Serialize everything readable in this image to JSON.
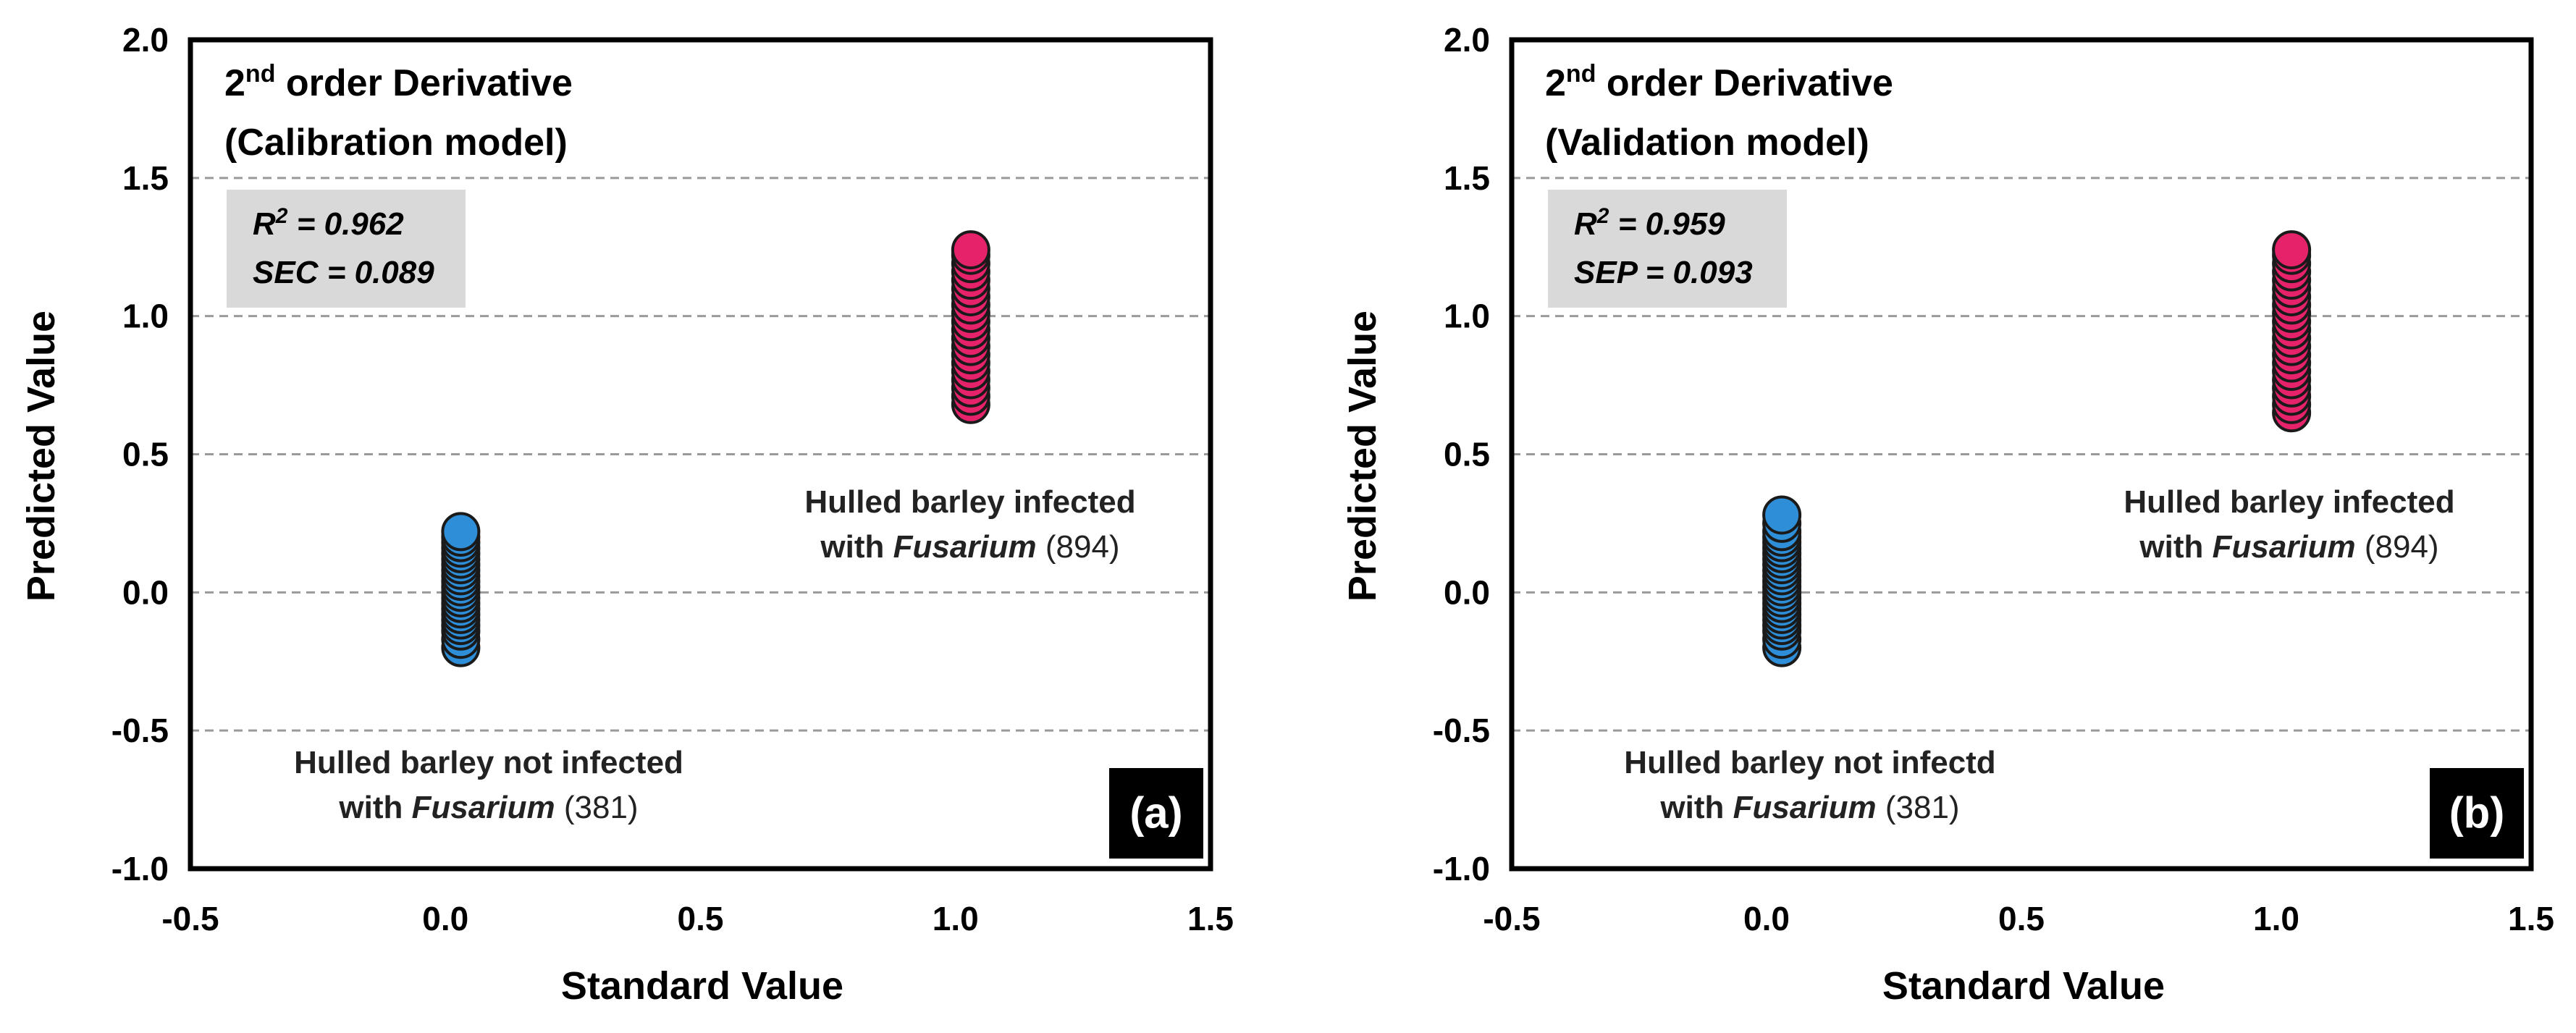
{
  "chart_data": [
    {
      "type": "scatter",
      "panel_tag": "(a)",
      "title_line1_prefix": "2",
      "title_line1_sup": "nd",
      "title_line1_suffix": " order Derivative",
      "title_line2": "(Calibration model)",
      "stats": {
        "r2_label": "R",
        "r2_sup": "2",
        "r2_value": " =  0.962",
        "err_line": "SEC = 0.089"
      },
      "xlabel": "Standard Value",
      "ylabel": "Predicted Value",
      "xlim": [
        -0.5,
        1.5
      ],
      "ylim": [
        -1.0,
        2.0
      ],
      "xticks": [
        "-0.5",
        "0.0",
        "0.5",
        "1.0",
        "1.5"
      ],
      "yticks": [
        "2.0",
        "1.5",
        "1.0",
        "0.5",
        "0.0",
        "-0.5",
        "-1.0"
      ],
      "grid": "horizontal-dashed",
      "series": [
        {
          "x": 0.03,
          "y_min": -0.2,
          "y_max": 0.23,
          "values": [
            -0.2,
            -0.17,
            -0.14,
            -0.12,
            -0.1,
            -0.08,
            -0.06,
            -0.04,
            -0.02,
            0.0,
            0.02,
            0.04,
            0.06,
            0.08,
            0.1,
            0.12,
            0.14,
            0.16,
            0.18,
            0.2,
            0.22
          ],
          "color": "#2e8fd8",
          "label_line1": "Hulled barley not infected",
          "label_line2_prefix": "with ",
          "label_line2_italic": "Fusarium",
          "label_line2_suffix": " (381)"
        },
        {
          "x": 1.03,
          "y_min": 0.68,
          "y_max": 1.24,
          "values": [
            0.68,
            0.71,
            0.74,
            0.77,
            0.8,
            0.83,
            0.86,
            0.89,
            0.92,
            0.95,
            0.98,
            1.01,
            1.04,
            1.07,
            1.1,
            1.13,
            1.16,
            1.19,
            1.22,
            1.24
          ],
          "color": "#e6226a",
          "label_line1": "Hulled barley infected",
          "label_line2_prefix": "with ",
          "label_line2_italic": "Fusarium",
          "label_line2_suffix": " (894)"
        }
      ]
    },
    {
      "type": "scatter",
      "panel_tag": "(b)",
      "title_line1_prefix": "2",
      "title_line1_sup": "nd",
      "title_line1_suffix": " order Derivative",
      "title_line2": "(Validation model)",
      "stats": {
        "r2_label": "R",
        "r2_sup": "2",
        "r2_value": " =  0.959",
        "err_line": "SEP = 0.093"
      },
      "xlabel": "Standard Value",
      "ylabel": "Predicted Value",
      "xlim": [
        -0.5,
        1.5
      ],
      "ylim": [
        -1.0,
        2.0
      ],
      "xticks": [
        "-0.5",
        "0.0",
        "0.5",
        "1.0",
        "1.5"
      ],
      "yticks": [
        "2.0",
        "1.5",
        "1.0",
        "0.5",
        "0.0",
        "-0.5",
        "-1.0"
      ],
      "grid": "horizontal-dashed",
      "series": [
        {
          "x": 0.03,
          "y_min": -0.2,
          "y_max": 0.28,
          "values": [
            -0.2,
            -0.17,
            -0.14,
            -0.12,
            -0.1,
            -0.08,
            -0.06,
            -0.04,
            -0.02,
            0.0,
            0.02,
            0.04,
            0.06,
            0.08,
            0.1,
            0.12,
            0.14,
            0.16,
            0.18,
            0.2,
            0.22,
            0.25,
            0.28
          ],
          "color": "#2e8fd8",
          "label_line1": "Hulled barley not infectd",
          "label_line2_prefix": "with ",
          "label_line2_italic": "Fusarium",
          "label_line2_suffix": " (381)"
        },
        {
          "x": 1.03,
          "y_min": 0.65,
          "y_max": 1.24,
          "values": [
            0.65,
            0.68,
            0.71,
            0.74,
            0.77,
            0.8,
            0.83,
            0.86,
            0.89,
            0.92,
            0.95,
            0.98,
            1.01,
            1.04,
            1.07,
            1.1,
            1.13,
            1.16,
            1.19,
            1.22,
            1.24
          ],
          "color": "#e6226a",
          "label_line1": "Hulled barley infected",
          "label_line2_prefix": "with ",
          "label_line2_italic": "Fusarium",
          "label_line2_suffix": " (894)"
        }
      ]
    }
  ]
}
